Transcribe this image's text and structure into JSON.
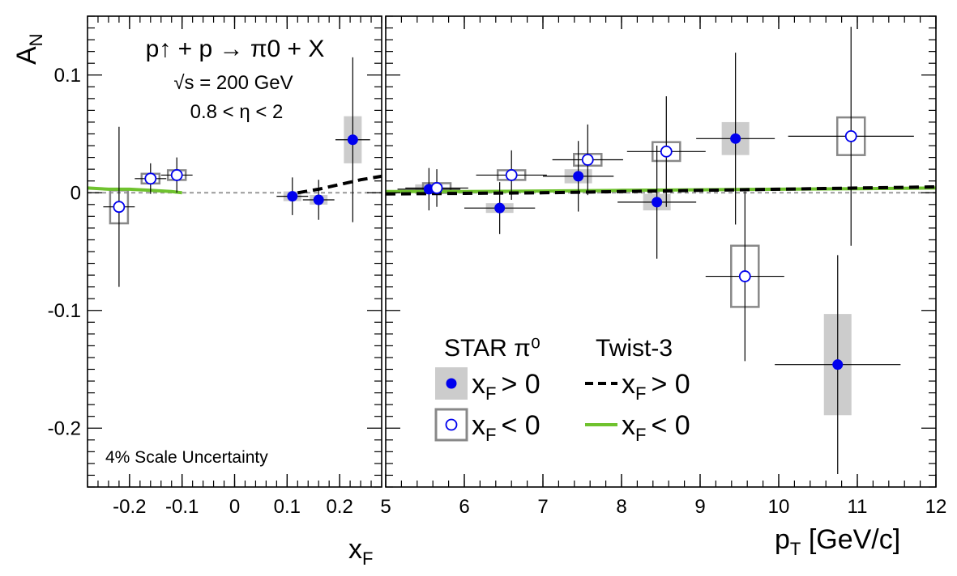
{
  "chart_data": {
    "type": "scatter",
    "ylabel": "A",
    "ylabel_sub": "N",
    "ylim": [
      -0.25,
      0.15
    ],
    "yticks": [
      -0.2,
      -0.1,
      0,
      0.1
    ],
    "ytick_labels": [
      "-0.2",
      "-0.1",
      "0",
      "0.1"
    ],
    "annotations": {
      "reaction": "p↑ + p → π0 + X",
      "energy": "√s = 200 GeV",
      "eta": "0.8 < η < 2",
      "scale_uncertainty": "4% Scale Uncertainty"
    },
    "legend": {
      "data_header": "STAR π⁰",
      "theory_header": "Twist-3",
      "pos_label": "x",
      "pos_label_sub": "F",
      "pos_label_tail": "> 0",
      "neg_label_tail": "< 0",
      "placement": "lower-center (right panel)"
    },
    "colors": {
      "filled_marker": "#0000ee",
      "sys_band_pos": "#cccccc",
      "sys_box_neg": "#888888",
      "twist3_neg": "#6fc22e",
      "twist3_pos": "#000000",
      "zero_line": "#999999"
    },
    "panels": [
      {
        "id": "xf",
        "xlabel": "x",
        "xlabel_sub": "F",
        "xlim": [
          -0.28,
          0.28
        ],
        "xticks": [
          -0.2,
          -0.1,
          0,
          0.1,
          0.2
        ],
        "xtick_labels": [
          "-0.2",
          "-0.1",
          "0",
          "0.1",
          "0.2"
        ],
        "series": [
          {
            "name": "x_F > 0",
            "marker": "filled",
            "points": [
              {
                "x": 0.11,
                "y": -0.003,
                "xerr": 0.03,
                "yerr": [
                  0.016,
                  0.016
                ],
                "sys": 0.003
              },
              {
                "x": 0.16,
                "y": -0.006,
                "xerr": 0.03,
                "yerr": [
                  0.017,
                  0.017
                ],
                "sys": 0.003
              },
              {
                "x": 0.225,
                "y": 0.045,
                "xerr": 0.033,
                "yerr": [
                  0.07,
                  0.07
                ],
                "sys": 0.02
              }
            ]
          },
          {
            "name": "x_F < 0",
            "marker": "open",
            "points": [
              {
                "x": -0.22,
                "y": -0.012,
                "xerr": 0.03,
                "yerr": [
                  0.068,
                  0.068
                ],
                "sys": 0.014
              },
              {
                "x": -0.16,
                "y": 0.012,
                "xerr": 0.03,
                "yerr": [
                  0.013,
                  0.013
                ],
                "sys": 0.004
              },
              {
                "x": -0.11,
                "y": 0.015,
                "xerr": 0.03,
                "yerr": [
                  0.015,
                  0.015
                ],
                "sys": 0.004
              }
            ]
          }
        ],
        "curves": [
          {
            "name": "Twist-3 x_F < 0",
            "style": "solid",
            "x": [
              -0.28,
              -0.24,
              -0.2,
              -0.16,
              -0.12,
              -0.1
            ],
            "y": [
              0.004,
              0.003,
              0.003,
              0.002,
              0.001,
              0.0
            ]
          },
          {
            "name": "Twist-3 x_F > 0",
            "style": "dashed",
            "x": [
              0.12,
              0.16,
              0.2,
              0.24,
              0.28
            ],
            "y": [
              0.0,
              0.003,
              0.007,
              0.011,
              0.014
            ]
          }
        ]
      },
      {
        "id": "pt",
        "xlabel": "p",
        "xlabel_sub": "T",
        "xlabel_tail": " [GeV/c]",
        "xlim": [
          5,
          12
        ],
        "xticks": [
          5,
          6,
          7,
          8,
          9,
          10,
          11,
          12
        ],
        "xtick_labels": [
          "5",
          "6",
          "7",
          "8",
          "9",
          "10",
          "11",
          "12"
        ],
        "series": [
          {
            "name": "x_F > 0",
            "marker": "filled",
            "points": [
              {
                "x": 5.55,
                "y": 0.003,
                "xerr": 0.4,
                "yerr": [
                  0.018,
                  0.018
                ],
                "sys": 0.002
              },
              {
                "x": 6.45,
                "y": -0.013,
                "xerr": 0.45,
                "yerr": [
                  0.022,
                  0.022
                ],
                "sys": 0.004
              },
              {
                "x": 7.45,
                "y": 0.014,
                "xerr": 0.45,
                "yerr": [
                  0.03,
                  0.03
                ],
                "sys": 0.006
              },
              {
                "x": 8.45,
                "y": -0.008,
                "xerr": 0.5,
                "yerr": [
                  0.048,
                  0.048
                ],
                "sys": 0.007
              },
              {
                "x": 9.45,
                "y": 0.046,
                "xerr": 0.5,
                "yerr": [
                  0.073,
                  0.073
                ],
                "sys": 0.014
              },
              {
                "x": 10.75,
                "y": -0.146,
                "xerr": 0.8,
                "yerr": [
                  0.093,
                  0.093
                ],
                "sys": 0.043
              }
            ]
          },
          {
            "name": "x_F < 0",
            "marker": "open",
            "points": [
              {
                "x": 5.65,
                "y": 0.004,
                "xerr": 0.4,
                "yerr": [
                  0.016,
                  0.016
                ],
                "sys": 0.003
              },
              {
                "x": 6.6,
                "y": 0.015,
                "xerr": 0.45,
                "yerr": [
                  0.021,
                  0.021
                ],
                "sys": 0.004
              },
              {
                "x": 7.57,
                "y": 0.028,
                "xerr": 0.45,
                "yerr": [
                  0.03,
                  0.03
                ],
                "sys": 0.005
              },
              {
                "x": 8.57,
                "y": 0.035,
                "xerr": 0.5,
                "yerr": [
                  0.047,
                  0.047
                ],
                "sys": 0.008
              },
              {
                "x": 9.57,
                "y": -0.071,
                "xerr": 0.5,
                "yerr": [
                  0.072,
                  0.072
                ],
                "sys": 0.026
              },
              {
                "x": 10.92,
                "y": 0.048,
                "xerr": 0.8,
                "yerr": [
                  0.093,
                  0.093
                ],
                "sys": 0.016
              }
            ]
          }
        ],
        "curves": [
          {
            "name": "Twist-3 x_F < 0",
            "style": "solid",
            "x": [
              5,
              6,
              7,
              8,
              9,
              10,
              11,
              12
            ],
            "y": [
              0.001,
              0.001,
              0.0015,
              0.002,
              0.0025,
              0.003,
              0.0035,
              0.004
            ]
          },
          {
            "name": "Twist-3 x_F > 0",
            "style": "dashed",
            "x": [
              5,
              6,
              7,
              8,
              9,
              10,
              11,
              12
            ],
            "y": [
              -0.001,
              -0.0005,
              0.0,
              0.001,
              0.002,
              0.003,
              0.004,
              0.005
            ]
          }
        ]
      }
    ]
  }
}
